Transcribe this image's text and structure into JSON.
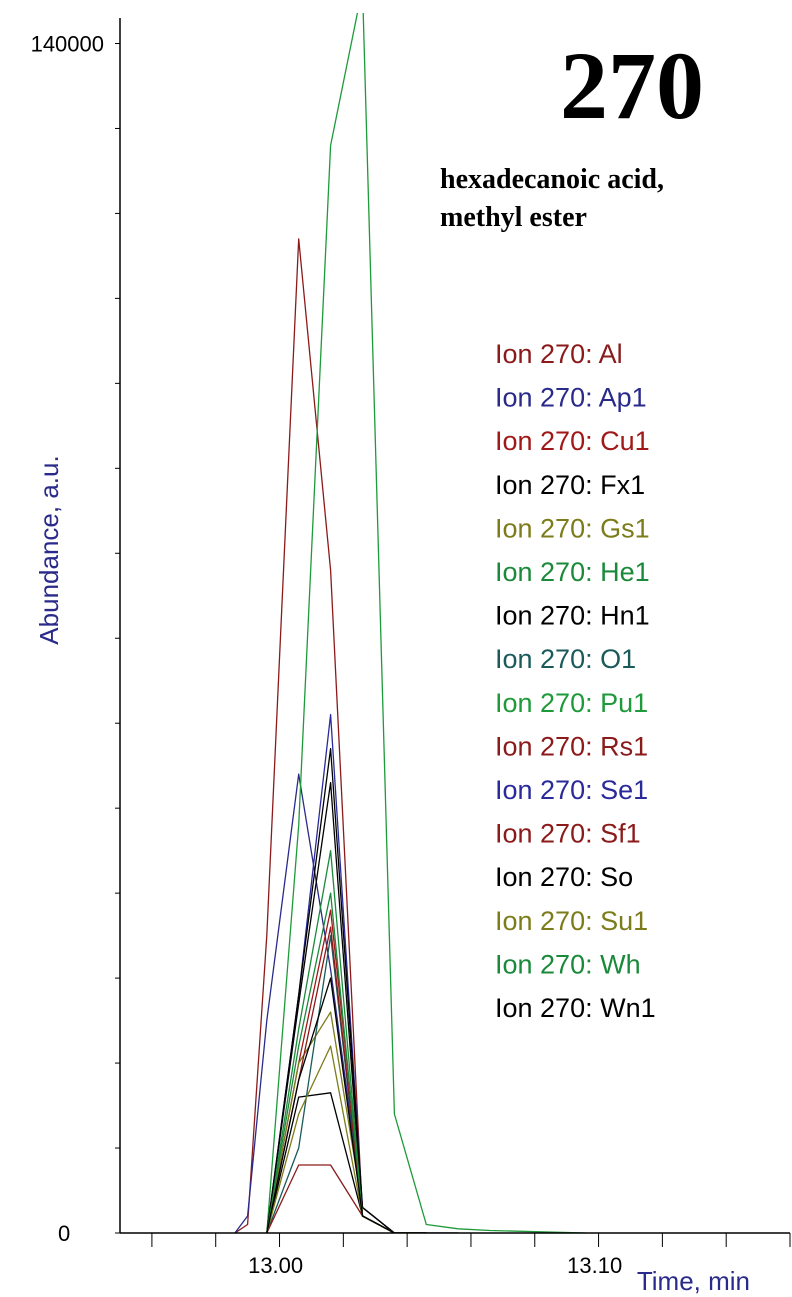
{
  "chart_data": {
    "type": "line",
    "title": "270",
    "subtitle_lines": [
      "hexadecanoic acid,",
      "methyl ester"
    ],
    "xlabel": "Time, min",
    "ylabel": "Abundance, a.u.",
    "xlim": [
      12.96,
      13.17
    ],
    "ylim": [
      0,
      143000
    ],
    "x_tick_labels": [
      {
        "value": 13.0,
        "label": "13.00"
      },
      {
        "value": 13.1,
        "label": "13.10"
      }
    ],
    "y_tick_labels": [
      {
        "value": 0,
        "label": "0"
      },
      {
        "value": 140000,
        "label": "140000"
      }
    ],
    "grid": false,
    "legend_position": "right",
    "series": [
      {
        "name": "Ion 270: Al",
        "color": "#8b1a1a",
        "x": [
          12.996,
          13.0,
          13.006,
          13.016,
          13.026,
          13.036,
          13.046,
          13.056,
          13.066
        ],
        "y": [
          0,
          1000,
          35000,
          117000,
          78000,
          2000,
          0,
          0,
          0
        ]
      },
      {
        "name": "Ion 270: Ap1",
        "color": "#2a2a8a",
        "x": [
          12.996,
          13.0,
          13.006,
          13.016,
          13.026,
          13.036,
          13.046,
          13.056,
          13.066
        ],
        "y": [
          0,
          2000,
          25000,
          54000,
          31000,
          3000,
          0,
          0,
          0
        ]
      },
      {
        "name": "Ion 270: Cu1",
        "color": "#a01818",
        "x": [
          13.006,
          13.016,
          13.026,
          13.036,
          13.046,
          13.056
        ],
        "y": [
          0,
          20000,
          38000,
          3000,
          0,
          0
        ]
      },
      {
        "name": "Ion 270: Fx1",
        "color": "#000000",
        "x": [
          13.006,
          13.016,
          13.026,
          13.036,
          13.046,
          13.056
        ],
        "y": [
          0,
          27000,
          53000,
          2000,
          0,
          0
        ]
      },
      {
        "name": "Ion 270: Gs1",
        "color": "#7c7c1a",
        "x": [
          13.006,
          13.016,
          13.026,
          13.036,
          13.046,
          13.056
        ],
        "y": [
          0,
          20000,
          26000,
          3000,
          0,
          0
        ]
      },
      {
        "name": "Ion 270: He1",
        "color": "#1a8a3a",
        "x": [
          13.006,
          13.016,
          13.026,
          13.036,
          13.046,
          13.056
        ],
        "y": [
          0,
          24000,
          45000,
          2000,
          0,
          0
        ]
      },
      {
        "name": "Ion 270: Hn1",
        "color": "#000000",
        "x": [
          13.006,
          13.016,
          13.026,
          13.036,
          13.046,
          13.056
        ],
        "y": [
          0,
          16000,
          16500,
          2000,
          0,
          0
        ]
      },
      {
        "name": "Ion 270: O1",
        "color": "#1a5a5a",
        "x": [
          13.006,
          13.016,
          13.026,
          13.036,
          13.046,
          13.056
        ],
        "y": [
          0,
          10000,
          35000,
          2000,
          0,
          0
        ]
      },
      {
        "name": "Ion 270: Pu1",
        "color": "#1e9a3a",
        "x": [
          13.006,
          13.016,
          13.026,
          13.036,
          13.046,
          13.056,
          13.066,
          13.076,
          13.086,
          13.096,
          13.106
        ],
        "y": [
          0,
          48000,
          128000,
          150000,
          14000,
          1000,
          500,
          300,
          200,
          100,
          0
        ]
      },
      {
        "name": "Ion 270: Rs1",
        "color": "#8b1a1a",
        "x": [
          13.006,
          13.016,
          13.026,
          13.036,
          13.046,
          13.056
        ],
        "y": [
          0,
          8000,
          8000,
          2000,
          0,
          0
        ]
      },
      {
        "name": "Ion 270: Se1",
        "color": "#2a2a9a",
        "x": [
          13.006,
          13.016,
          13.026,
          13.036,
          13.046,
          13.056
        ],
        "y": [
          0,
          28000,
          61000,
          3000,
          0,
          0
        ]
      },
      {
        "name": "Ion 270: Sf1",
        "color": "#8b1a1a",
        "x": [
          13.006,
          13.016,
          13.026,
          13.036,
          13.046,
          13.056
        ],
        "y": [
          0,
          18000,
          36000,
          2000,
          0,
          0
        ]
      },
      {
        "name": "Ion 270: So",
        "color": "#000000",
        "x": [
          13.006,
          13.016,
          13.026,
          13.036,
          13.046,
          13.056
        ],
        "y": [
          0,
          28000,
          57000,
          3000,
          0,
          0
        ]
      },
      {
        "name": "Ion 270: Su1",
        "color": "#7c7c1a",
        "x": [
          13.006,
          13.016,
          13.026,
          13.036,
          13.046,
          13.056
        ],
        "y": [
          0,
          14000,
          22000,
          2000,
          0,
          0
        ]
      },
      {
        "name": "Ion 270: Wh",
        "color": "#1a8a3a",
        "x": [
          13.006,
          13.016,
          13.026,
          13.036,
          13.046,
          13.056
        ],
        "y": [
          0,
          22000,
          40000,
          2000,
          0,
          0
        ]
      },
      {
        "name": "Ion 270: Wn1",
        "color": "#000000",
        "x": [
          13.006,
          13.016,
          13.026,
          13.036,
          13.046,
          13.056
        ],
        "y": [
          0,
          18000,
          30000,
          2000,
          0,
          0
        ]
      }
    ]
  },
  "colors": {
    "axis_title": "#2a2a8a",
    "axis": "#000000"
  }
}
